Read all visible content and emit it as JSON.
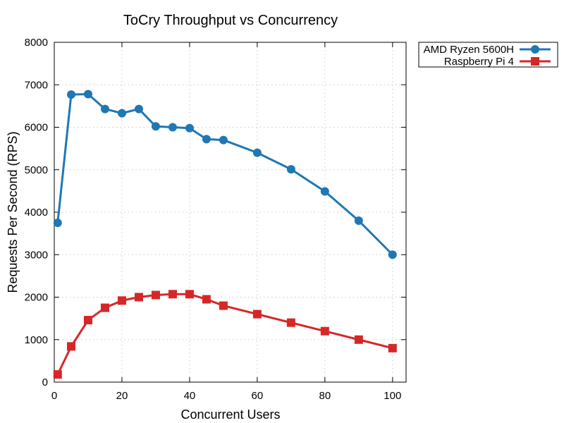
{
  "chart_data": {
    "type": "line",
    "title": "ToCry Throughput vs Concurrency",
    "xlabel": "Concurrent Users",
    "ylabel": "Requests Per Second (RPS)",
    "xlim": [
      0,
      104
    ],
    "ylim": [
      0,
      8000
    ],
    "xticks": [
      0,
      20,
      40,
      60,
      80,
      100
    ],
    "yticks": [
      0,
      1000,
      2000,
      3000,
      4000,
      5000,
      6000,
      7000,
      8000
    ],
    "grid": true,
    "legend_position": "outside-top-right",
    "series": [
      {
        "name": "AMD Ryzen 5600H",
        "color": "#1f77b4",
        "marker": "circle",
        "x": [
          1,
          5,
          10,
          15,
          20,
          25,
          30,
          35,
          40,
          45,
          50,
          60,
          70,
          80,
          90,
          100
        ],
        "y": [
          3750,
          6770,
          6780,
          6430,
          6330,
          6430,
          6020,
          6000,
          5980,
          5720,
          5700,
          5400,
          5010,
          4490,
          3800,
          3000
        ]
      },
      {
        "name": "Raspberry Pi 4",
        "color": "#d62728",
        "marker": "square",
        "x": [
          1,
          5,
          10,
          15,
          20,
          25,
          30,
          35,
          40,
          45,
          50,
          60,
          70,
          80,
          90,
          100
        ],
        "y": [
          180,
          840,
          1460,
          1750,
          1920,
          2000,
          2050,
          2070,
          2070,
          1950,
          1800,
          1600,
          1400,
          1200,
          1000,
          800
        ]
      }
    ]
  }
}
